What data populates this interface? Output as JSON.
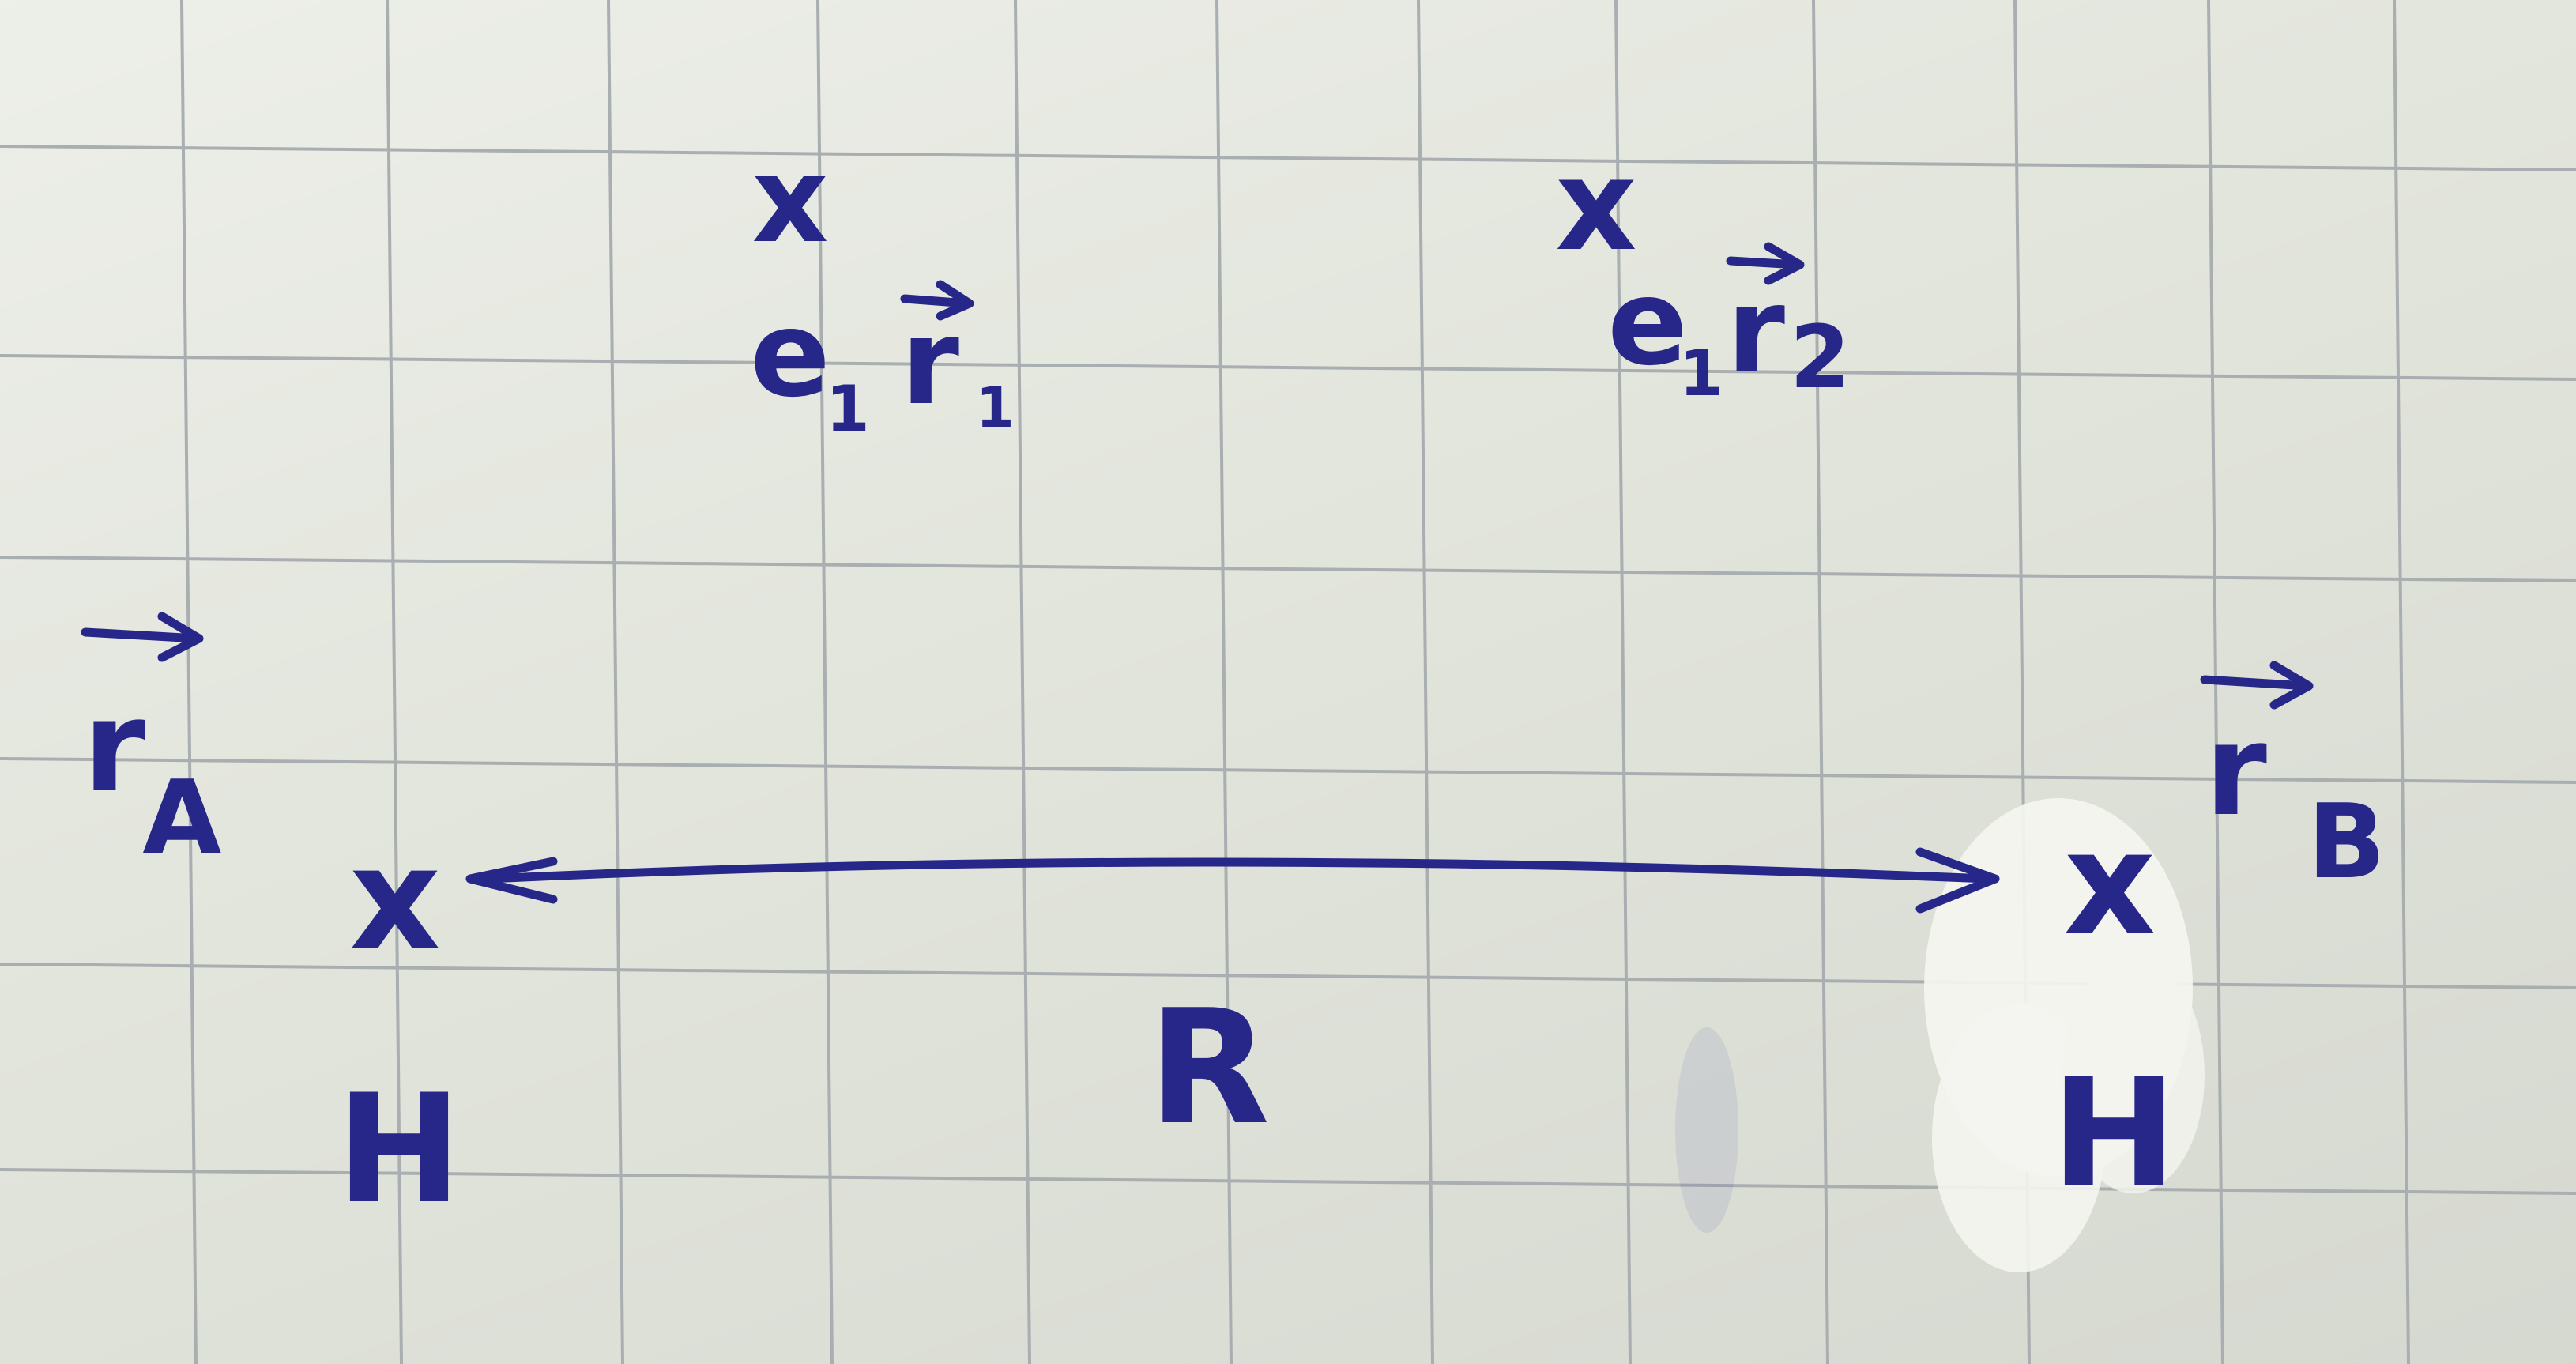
{
  "paper": {
    "background": "#e3e6dd",
    "grid_color": "#a9aeb0",
    "ink_color": "#27278a",
    "correction_fluid_color": "#f4f5ef"
  },
  "labels": {
    "electron_1": {
      "marker": "x",
      "particle": "e",
      "subscript": "1",
      "vector": "r",
      "vector_subscript": "1"
    },
    "electron_2": {
      "marker": "x",
      "particle": "e",
      "subscript": "1",
      "vector": "r",
      "vector_subscript": "2"
    },
    "nucleus_a": {
      "marker": "x",
      "element": "H",
      "vector": "r",
      "vector_subscript": "A"
    },
    "nucleus_b": {
      "marker": "x",
      "element": "H",
      "vector": "r",
      "vector_subscript": "B"
    },
    "distance": "R"
  },
  "icons": {
    "arrow": "double-headed-arrow",
    "vector_over_arrow": "harpoon-arrow"
  }
}
